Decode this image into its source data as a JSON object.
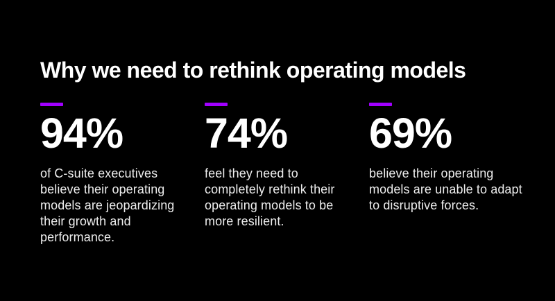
{
  "theme": {
    "background": "#000000",
    "text_primary": "#ffffff",
    "text_secondary": "#ededed",
    "accent": "#a100ff"
  },
  "slide": {
    "title": "Why we need to rethink operating models",
    "stats": [
      {
        "value": "94%",
        "description": "of C-suite executives believe their operating models are jeopardizing their growth and performance."
      },
      {
        "value": "74%",
        "description": "feel they need to completely rethink their operating models to be more resilient."
      },
      {
        "value": "69%",
        "description": "believe their operating models are unable to adapt to disruptive forces."
      }
    ]
  }
}
